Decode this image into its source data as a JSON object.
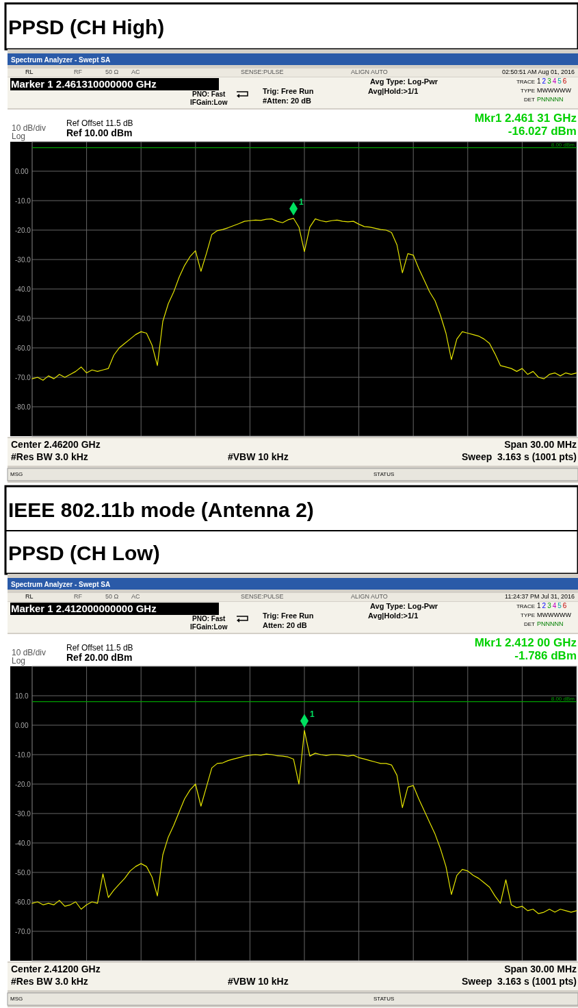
{
  "chart_data": [
    {
      "type": "line",
      "title": "PPSD (CH High)",
      "categories": [
        null,
        null,
        null,
        null,
        null,
        null,
        null,
        null,
        null,
        null,
        null,
        null,
        null,
        null,
        null,
        null,
        null,
        null,
        null,
        null,
        null,
        null,
        null,
        null,
        null,
        null,
        null,
        null,
        null,
        null,
        null,
        null,
        null,
        null,
        null,
        null,
        null,
        null,
        null,
        null,
        null,
        null,
        null,
        null,
        null,
        null,
        null,
        null,
        null,
        null,
        null,
        null,
        null,
        null,
        null,
        null,
        null,
        null,
        null,
        null,
        null,
        null,
        null,
        null,
        null,
        null,
        null,
        null,
        null,
        null,
        null,
        null,
        null,
        null,
        null,
        null,
        null,
        null,
        null,
        null,
        null,
        null,
        null,
        null,
        null,
        null,
        null,
        null,
        null,
        null,
        null,
        null,
        null,
        null,
        null,
        null,
        null,
        null,
        null,
        null,
        null
      ],
      "series": [
        {
          "color": "#e6e600",
          "values": [
            -70.5,
            -70,
            -71,
            -69.5,
            -70.5,
            -69,
            -70,
            -69,
            -68,
            -66.5,
            -68.5,
            -67.5,
            -68,
            -67.5,
            -67,
            -62.5,
            -60,
            -58.5,
            -57,
            -55.5,
            -54.5,
            -55,
            -59,
            -66,
            -51,
            -45,
            -41,
            -36,
            -32,
            -29,
            -27,
            -34,
            -28,
            -21.5,
            -20.2,
            -19.8,
            -19.2,
            -18.5,
            -17.8,
            -17,
            -16.8,
            -16.6,
            -16.7,
            -16.3,
            -16.2,
            -17,
            -17.5,
            -16.5,
            -16,
            -19,
            -27.3,
            -19,
            -16.2,
            -16.8,
            -17.2,
            -16.8,
            -16.6,
            -17,
            -17.2,
            -17,
            -18,
            -18.8,
            -19,
            -19.4,
            -19.8,
            -20,
            -20.8,
            -25,
            -34.5,
            -28,
            -28.5,
            -33,
            -37,
            -41,
            -44,
            -49,
            -55,
            -64,
            -57,
            -54.5,
            -55,
            -55.5,
            -56,
            -57,
            -58.5,
            -62,
            -66,
            -66.5,
            -67,
            -68,
            -67,
            -69,
            -68,
            -70,
            -70.5,
            -69,
            -68.5,
            -69.5,
            -68.5,
            -69,
            -68.5
          ]
        }
      ],
      "ylim": [
        -90,
        10
      ],
      "yticks": [
        {
          "value": 0,
          "label": "0.00"
        },
        {
          "value": -10,
          "label": "-10.0"
        },
        {
          "value": -20,
          "label": "-20.0"
        },
        {
          "value": -30,
          "label": "-30.0"
        },
        {
          "value": -40,
          "label": "-40.0"
        },
        {
          "value": -50,
          "label": "-50.0"
        },
        {
          "value": -60,
          "label": "-60.0"
        },
        {
          "value": -70,
          "label": "-70.0"
        },
        {
          "value": -80,
          "label": "-80.0"
        }
      ],
      "tick_labels": "y",
      "grid": true,
      "ref_lines": [
        {
          "axis": "y",
          "value": 8,
          "label": "8.00 dBm",
          "color": "#00a000"
        }
      ],
      "annotations": [
        "Spectrum Analyzer - Swept SA",
        "RL",
        "RF",
        "50 Ω",
        "AC",
        "SENSE:PULSE",
        "ALIGN AUTO",
        "02:50:51 AM Aug 01, 2016",
        "Marker 1 2.461310000000 GHz",
        "PNO: Fast",
        "IFGain:Low",
        "Trig: Free Run",
        "#Atten: 20 dB",
        "Avg Type: Log-Pwr",
        "Avg|Hold:>1/1",
        "TRACE",
        "123456",
        "TYPE",
        "MWWWWW",
        "DET",
        "PNNNNN",
        "Ref Offset 11.5 dB",
        "Ref 10.00 dBm",
        "10 dB/div",
        "Log",
        "Mkr1 2.461 31 GHz",
        "-16.027 dBm",
        "Center 2.46200 GHz",
        "#Res BW 3.0 kHz",
        "#VBW 10 kHz",
        "Span 30.00 MHz",
        "Sweep  3.163 s (1001 pts)",
        "MSG",
        "STATUS",
        "1"
      ]
    },
    {
      "type": "line",
      "title": "IEEE  802.11b  mode  (Antenna  2)",
      "subtitle": "PPSD (CH Low)",
      "categories": [
        null,
        null,
        null,
        null,
        null,
        null,
        null,
        null,
        null,
        null,
        null,
        null,
        null,
        null,
        null,
        null,
        null,
        null,
        null,
        null,
        null,
        null,
        null,
        null,
        null,
        null,
        null,
        null,
        null,
        null,
        null,
        null,
        null,
        null,
        null,
        null,
        null,
        null,
        null,
        null,
        null,
        null,
        null,
        null,
        null,
        null,
        null,
        null,
        null,
        null,
        null,
        null,
        null,
        null,
        null,
        null,
        null,
        null,
        null,
        null,
        null,
        null,
        null,
        null,
        null,
        null,
        null,
        null,
        null,
        null,
        null,
        null,
        null,
        null,
        null,
        null,
        null,
        null,
        null,
        null,
        null,
        null,
        null,
        null,
        null,
        null,
        null,
        null,
        null,
        null,
        null,
        null,
        null,
        null,
        null,
        null,
        null,
        null,
        null,
        null,
        null
      ],
      "series": [
        {
          "color": "#e6e600",
          "values": [
            -60.5,
            -60,
            -61,
            -60.5,
            -61,
            -59.5,
            -61.5,
            -61,
            -60,
            -62.5,
            -61,
            -60,
            -60.5,
            -50.5,
            -58.5,
            -56,
            -54,
            -52,
            -49.5,
            -48,
            -47,
            -48,
            -51.5,
            -58,
            -44,
            -38,
            -34,
            -29.5,
            -25,
            -22,
            -20,
            -27.5,
            -21,
            -14.5,
            -13,
            -12.8,
            -12,
            -11.5,
            -11,
            -10.5,
            -10.2,
            -10,
            -10.2,
            -9.8,
            -10,
            -10.4,
            -10.5,
            -10.8,
            -11.5,
            -20,
            -1.8,
            -10.5,
            -9.5,
            -10,
            -10.3,
            -10,
            -10,
            -10.2,
            -10.5,
            -10.2,
            -11,
            -11.5,
            -12,
            -12.5,
            -13,
            -13,
            -13.5,
            -17,
            -28,
            -21,
            -20.5,
            -25,
            -29,
            -33,
            -37,
            -42,
            -48,
            -57.5,
            -51,
            -49,
            -49.5,
            -51,
            -52,
            -53.5,
            -55,
            -58,
            -60.5,
            -52.5,
            -61,
            -62,
            -61.5,
            -63,
            -62.5,
            -64,
            -63.5,
            -62.5,
            -63.5,
            -62.5,
            -63,
            -63.5,
            -63
          ]
        }
      ],
      "ylim": [
        -80,
        20
      ],
      "yticks": [
        {
          "value": 10,
          "label": "10.0"
        },
        {
          "value": 0,
          "label": "0.00"
        },
        {
          "value": -10,
          "label": "-10.0"
        },
        {
          "value": -20,
          "label": "-20.0"
        },
        {
          "value": -30,
          "label": "-30.0"
        },
        {
          "value": -40,
          "label": "-40.0"
        },
        {
          "value": -50,
          "label": "-50.0"
        },
        {
          "value": -60,
          "label": "-60.0"
        },
        {
          "value": -70,
          "label": "-70.0"
        }
      ],
      "tick_labels": "y",
      "grid": true,
      "ref_lines": [
        {
          "axis": "y",
          "value": 8,
          "label": "8.00 dBm",
          "color": "#00a000"
        }
      ],
      "annotations": [
        "Spectrum Analyzer - Swept SA",
        "RL",
        "RF",
        "50 Ω",
        "AC",
        "SENSE:PULSE",
        "ALIGN AUTO",
        "11:24:37 PM Jul 31, 2016",
        "Marker 1 2.412000000000 GHz",
        "PNO: Fast",
        "IFGain:Low",
        "Trig: Free Run",
        "Atten: 20 dB",
        "Avg Type: Log-Pwr",
        "Avg|Hold:>1/1",
        "TRACE",
        "123456",
        "TYPE",
        "MWWWWW",
        "DET",
        "PNNNNN",
        "Ref Offset 11.5 dB",
        "Ref 20.00 dBm",
        "10 dB/div",
        "Log",
        "Mkr1 2.412 00 GHz",
        "-1.786 dBm",
        "Center 2.41200 GHz",
        "#Res BW 3.0 kHz",
        "#VBW 10 kHz",
        "Span 30.00 MHz",
        "Sweep  3.163 s (1001 pts)",
        "MSG",
        "STATUS",
        "1"
      ]
    }
  ]
}
